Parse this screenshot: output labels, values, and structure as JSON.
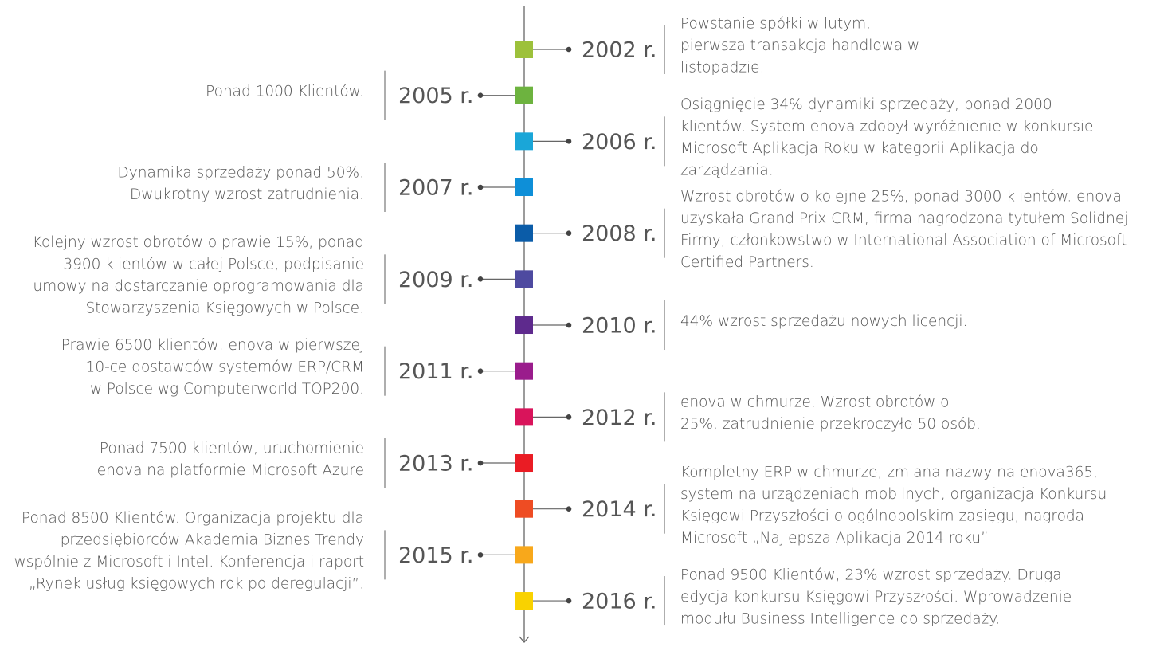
{
  "timeline": {
    "events": [
      {
        "year": "2002 r.",
        "side": "right",
        "color": "#9dc13b",
        "lines": [
          "Powstanie spółki w lutym,",
          "pierwsza transakcja handlowa w",
          "listopadzie."
        ]
      },
      {
        "year": "2005 r.",
        "side": "left",
        "color": "#6db33f",
        "lines": [
          "Ponad 1000 Klientów."
        ]
      },
      {
        "year": "2006 r.",
        "side": "right",
        "color": "#1aa6d8",
        "lines": [
          "Osiągnięcie 34% dynamiki sprzedaży, ponad 2000",
          "klientów. System enova zdobył wyróżnienie w konkursie",
          "Microsoft Aplikacja Roku w kategorii Aplikacja do",
          "zarządzania."
        ]
      },
      {
        "year": "2007 r.",
        "side": "left",
        "color": "#0e8fd8",
        "lines": [
          "Dynamika sprzedaży ponad 50%.",
          "Dwukrotny wzrost zatrudnienia."
        ]
      },
      {
        "year": "2008 r.",
        "side": "right",
        "color": "#0b5ca8",
        "lines": [
          "Wzrost obrotów o kolejne 25%, ponad 3000 klientów. enova",
          "uzyskała Grand Prix CRM, firma nagrodzona tytułem Solidnej",
          "Firmy, członkowstwo w International Association of Microsoft",
          "Certified Partners."
        ]
      },
      {
        "year": "2009 r.",
        "side": "left",
        "color": "#4e4aa0",
        "lines": [
          "Kolejny wzrost obrotów o prawie 15%, ponad",
          "3900 klientów w całej Polsce, podpisanie",
          "umowy na dostarczanie oprogramowania dla",
          "Stowarzyszenia Księgowych w Polsce."
        ]
      },
      {
        "year": "2010 r.",
        "side": "right",
        "color": "#5e2a8d",
        "lines": [
          "44% wzrost sprzedażu nowych licencji."
        ]
      },
      {
        "year": "2011 r.",
        "side": "left",
        "color": "#9a1c8c",
        "lines": [
          "Prawie 6500 klientów, enova w pierwszej",
          "10-ce dostawców  systemów ERP/CRM",
          "w Polsce wg Computerworld TOP200."
        ]
      },
      {
        "year": "2012 r.",
        "side": "right",
        "color": "#d9145b",
        "lines": [
          "enova w chmurze. Wzrost obrotów o",
          "25%, zatrudnienie przekroczyło 50 osób."
        ]
      },
      {
        "year": "2013 r.",
        "side": "left",
        "color": "#ea1c24",
        "lines": [
          "Ponad 7500 klientów, uruchomienie",
          "enova na platformie Microsoft Azure"
        ]
      },
      {
        "year": "2014 r.",
        "side": "right",
        "color": "#ee4c23",
        "lines": [
          "Kompletny ERP w chmurze, zmiana nazwy na enova365,",
          "system na urządzeniach mobilnych, organizacja Konkursu",
          "Księgowi Przyszłości o ogólnopolskim zasięgu, nagroda",
          "Microsoft „Najlepsza Aplikacja 2014 roku”"
        ]
      },
      {
        "year": "2015 r.",
        "side": "left",
        "color": "#f8a81b",
        "lines": [
          "Ponad 8500 Klientów. Organizacja projektu dla",
          "przedsiębiorców Akademia Biznes Trendy",
          "wspólnie z Microsoft i Intel. Konferencja i raport",
          "„Rynek usług księgowych rok po deregulacji”."
        ]
      },
      {
        "year": "2016 r.",
        "side": "right",
        "color": "#f9d200",
        "lines": [
          "Ponad 9500 Klientów, 23% wzrost sprzedaży. Druga",
          "edycja konkursu Księgowi Przyszłości. Wprowadzenie",
          "modułu Business Intelligence do sprzedaży."
        ]
      }
    ]
  }
}
